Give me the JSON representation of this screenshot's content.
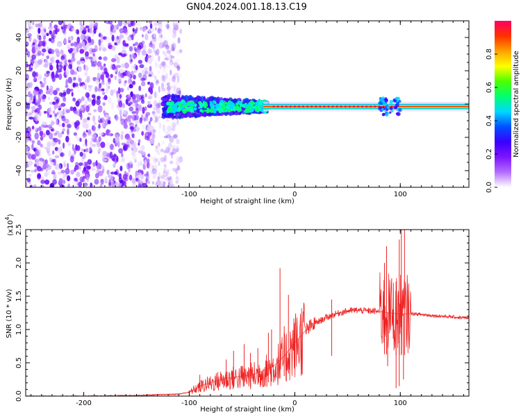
{
  "title": "GN04.2024.001.18.13.C19",
  "spectrogram": {
    "type": "heatmap",
    "xlabel": "Height of straight line (km)",
    "ylabel": "Frequency (Hz)",
    "xlim": [
      -255,
      165
    ],
    "ylim": [
      -50,
      50
    ],
    "xticks": [
      -200,
      -100,
      0,
      100
    ],
    "yticks": [
      -40,
      -20,
      0,
      20,
      40
    ],
    "colorbar": {
      "label": "Normalized spectral amplitude",
      "range": [
        0.0,
        1.0
      ],
      "ticks": [
        "0.0",
        "0.2",
        "0.4",
        "0.6",
        "0.8"
      ],
      "colors": [
        "#ffffff",
        "#b46cff",
        "#7d14ff",
        "#3a00ff",
        "#0050ff",
        "#00d8ff",
        "#00ff70",
        "#4cff00",
        "#ffff00",
        "#ffa000",
        "#ff3000",
        "#ff0064"
      ]
    },
    "signal_line": {
      "frequency_hz": -1.5,
      "x_start_km": -120,
      "x_end_km": 165
    }
  },
  "chart_data": {
    "type": "line",
    "xlabel": "Height of straight line (km)",
    "ylabel": "SNR (10 * v/v)",
    "multiplier": "(x10",
    "multiplier_exp": "4",
    "multiplier_close": ")",
    "xlim": [
      -255,
      165
    ],
    "ylim": [
      0.0,
      2.5
    ],
    "xticks": [
      -200,
      -100,
      0,
      100
    ],
    "yticks": [
      "0.0",
      "0.5",
      "1.0",
      "1.5",
      "2.0",
      "2.5"
    ],
    "color": "#ee2222",
    "series": [
      {
        "x": [
          -255,
          -200,
          -150,
          -110,
          -100,
          -90,
          -80,
          -70,
          -60,
          -50,
          -40,
          -30,
          -20,
          -10,
          0,
          10,
          20,
          30,
          40,
          50,
          60,
          70,
          80,
          90,
          100,
          110,
          130,
          165
        ],
        "values": [
          0.0,
          0.0,
          0.01,
          0.03,
          0.06,
          0.15,
          0.2,
          0.25,
          0.28,
          0.3,
          0.32,
          0.38,
          0.45,
          0.6,
          0.8,
          0.98,
          1.1,
          1.18,
          1.24,
          1.28,
          1.29,
          1.28,
          1.27,
          1.25,
          1.23,
          1.24,
          1.21,
          1.17
        ]
      }
    ],
    "spikes": [
      {
        "x": -90,
        "y": 0.32
      },
      {
        "x": -65,
        "y": 0.55
      },
      {
        "x": -58,
        "y": 0.68
      },
      {
        "x": -48,
        "y": 0.78
      },
      {
        "x": -42,
        "y": 0.65
      },
      {
        "x": -35,
        "y": 0.72
      },
      {
        "x": -25,
        "y": 0.95
      },
      {
        "x": -22,
        "y": 1.0
      },
      {
        "x": -14,
        "y": 1.92
      },
      {
        "x": -10,
        "y": 1.05
      },
      {
        "x": -6,
        "y": 1.52
      },
      {
        "x": 35,
        "y": 1.45
      },
      {
        "x": 85,
        "y": 2.0
      },
      {
        "x": 87,
        "y": 2.25
      },
      {
        "x": 96,
        "y": 1.72
      },
      {
        "x": 99,
        "y": 2.35
      },
      {
        "x": 101,
        "y": 2.5
      },
      {
        "x": 104,
        "y": 2.5
      }
    ],
    "dips": [
      {
        "x": -8,
        "y": 0.22
      },
      {
        "x": 88,
        "y": 0.45
      },
      {
        "x": 96,
        "y": 0.12
      },
      {
        "x": 99,
        "y": 0.15
      },
      {
        "x": 103,
        "y": 0.25
      }
    ]
  }
}
